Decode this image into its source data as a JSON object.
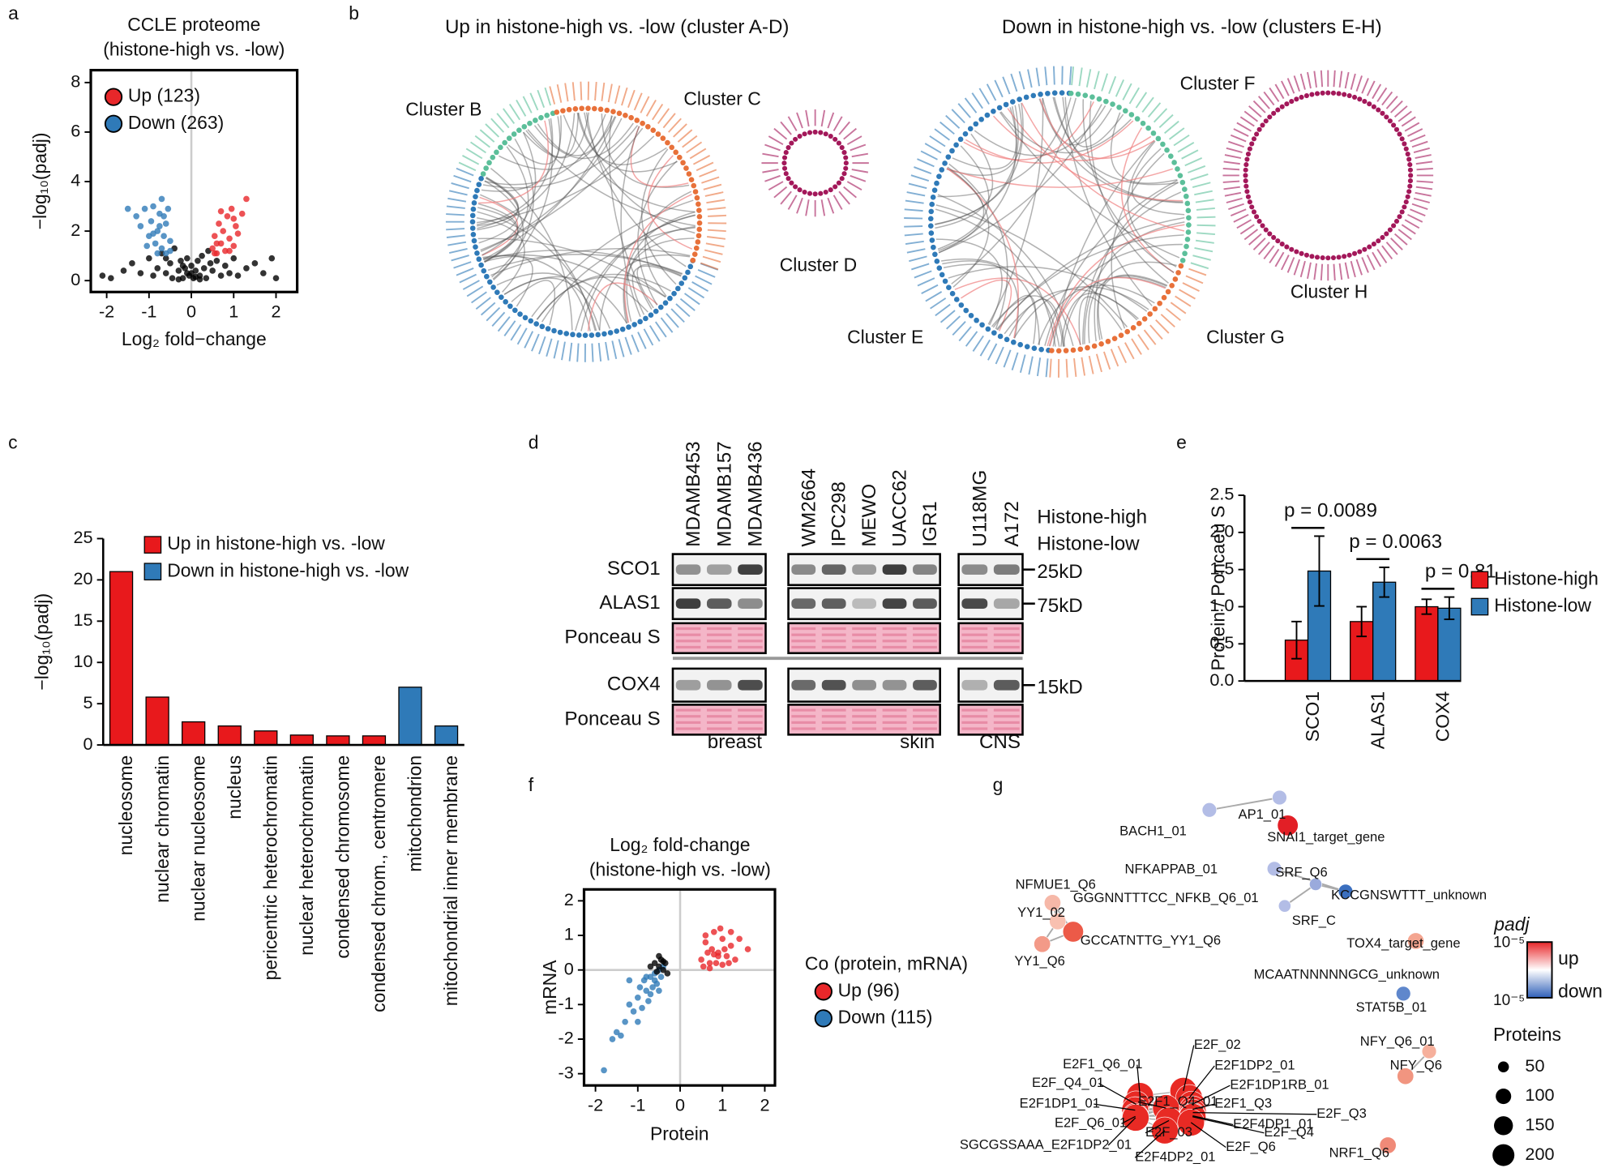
{
  "chart_data": [
    {
      "panel": "a",
      "type": "scatter",
      "title": "CCLE proteome",
      "subtitle": "(histone-high vs. -low)",
      "xlabel": "Log₂ fold−change",
      "ylabel": "−log₁₀(padj)",
      "xlim": [
        -2.375,
        2.5
      ],
      "ylim": [
        -0.46,
        8.5
      ],
      "xticks": [
        -2,
        -1,
        0,
        1,
        2
      ],
      "yticks": [
        0,
        2,
        4,
        6,
        8
      ],
      "vlines": [
        0
      ],
      "legend": "upper left",
      "series": [
        {
          "color": "#000000",
          "x": [
            -1.9,
            -1.6,
            -1.4,
            -1.2,
            -1.0,
            -0.9,
            -0.8,
            -0.7,
            -0.6,
            -0.5,
            -0.45,
            -0.4,
            -0.3,
            -0.25,
            -0.2,
            -0.15,
            -0.1,
            -0.05,
            0,
            0.05,
            0.1,
            0.15,
            0.2,
            0.25,
            0.3,
            0.35,
            0.4,
            0.5,
            0.6,
            0.7,
            0.8,
            0.9,
            1.0,
            1.1,
            1.3,
            1.5,
            1.7,
            2.0,
            -0.3,
            0.0,
            -0.6,
            0.45,
            0.2,
            -0.1,
            0.1,
            -0.2,
            1.9,
            -2.1
          ],
          "y": [
            0.1,
            0.4,
            0.7,
            0.3,
            0.9,
            0.2,
            0.5,
            1.1,
            0.3,
            0.7,
            0.1,
            1.3,
            0.4,
            0.8,
            0.1,
            0.5,
            0.9,
            0.2,
            0.6,
            0.1,
            0.4,
            0.8,
            0.2,
            1.0,
            0.5,
            0.1,
            1.2,
            0.4,
            0.8,
            0.2,
            0.6,
            0.3,
            0.9,
            0.2,
            0.5,
            0.7,
            0.3,
            0.1,
            0.05,
            0.3,
            0.9,
            0.7,
            0.05,
            0.3,
            0.15,
            0.6,
            0.9,
            0.2
          ]
        },
        {
          "name": "Up (123)",
          "color": "#e8272a",
          "x": [
            0.5,
            0.55,
            0.6,
            0.65,
            0.7,
            0.75,
            0.8,
            0.85,
            0.9,
            0.95,
            1.0,
            1.05,
            1.1,
            1.2,
            1.3,
            0.6,
            0.7,
            0.9,
            1.0,
            0.55
          ],
          "y": [
            1.3,
            1.8,
            1.1,
            2.3,
            1.5,
            2.0,
            1.2,
            2.6,
            1.7,
            2.9,
            1.4,
            2.2,
            1.9,
            2.7,
            3.3,
            1.5,
            2.8,
            1.2,
            2.5,
            1.1
          ]
        },
        {
          "name": "Down (263)",
          "color": "#2f7ab8",
          "x": [
            -1.3,
            -1.2,
            -1.1,
            -1.0,
            -0.95,
            -0.9,
            -0.85,
            -0.8,
            -0.75,
            -0.7,
            -0.7,
            -0.65,
            -0.6,
            -0.6,
            -0.55,
            -0.5,
            -0.5,
            -0.8,
            -1.05,
            -0.9,
            -1.5,
            -0.75,
            -0.65
          ],
          "y": [
            2.6,
            2.2,
            2.9,
            1.8,
            2.4,
            3.0,
            1.5,
            2.0,
            2.7,
            1.3,
            3.3,
            1.8,
            2.3,
            1.1,
            2.9,
            1.6,
            1.2,
            1.1,
            1.4,
            1.9,
            2.9,
            2.2,
            2.6
          ]
        }
      ]
    },
    {
      "panel": "b",
      "type": "chord",
      "diagrams": [
        {
          "title": "Up in histone-high vs. -low (cluster A-D)",
          "other_color": "#2f7ab8",
          "clusters": [
            {
              "label": "Cluster B",
              "color": "#5cbf9a"
            },
            {
              "label": "Cluster C",
              "color": "#e8713a"
            },
            {
              "label": "Cluster D",
              "color": "#a3185a"
            }
          ]
        },
        {
          "title": "Down in histone-high vs. -low (clusters E-H)",
          "clusters": [
            {
              "label": "Cluster E",
              "color": "#2f7ab8"
            },
            {
              "label": "Cluster F",
              "color": "#5cbf9a"
            },
            {
              "label": "Cluster G",
              "color": "#e8713a"
            },
            {
              "label": "Cluster H",
              "color": "#a3185a"
            }
          ]
        }
      ]
    },
    {
      "panel": "c",
      "type": "bar",
      "ylabel": "−log₁₀(padj)",
      "categories": [
        "nucleosome",
        "nuclear chromatin",
        "nuclear nucleosome",
        "nucleus",
        "pericentric heterochromatin",
        "nuclear heterochromatin",
        "condensed chromosome",
        "condensed chrom., centromere",
        "mitochondrion",
        "mitochondrial inner membrane"
      ],
      "values": [
        21,
        5.8,
        2.8,
        2.3,
        1.7,
        1.2,
        1.1,
        1.1,
        7.0,
        2.3
      ],
      "colors": [
        "#e8191c",
        "#e8191c",
        "#e8191c",
        "#e8191c",
        "#e8191c",
        "#e8191c",
        "#e8191c",
        "#e8191c",
        "#2f7ab8",
        "#2f7ab8"
      ],
      "legend": [
        {
          "name": "Up in histone-high vs. -low",
          "color": "#e8191c"
        },
        {
          "name": "Down in histone-high vs. -low",
          "color": "#2f7ab8"
        }
      ],
      "ylim": [
        0,
        25
      ],
      "yticks": [
        0,
        5,
        10,
        15,
        20,
        25
      ]
    },
    {
      "panel": "d",
      "type": "blot",
      "groups": [
        {
          "label": "breast",
          "lanes": [
            {
              "label": "MDAMB453",
              "color": "#e8272a"
            },
            {
              "label": "MDAMB157",
              "color": "#2f7ab8"
            },
            {
              "label": "MDAMB436",
              "color": "#2f7ab8"
            }
          ]
        },
        {
          "label": "skin",
          "lanes": [
            {
              "label": "WM2664",
              "color": "#e8272a"
            },
            {
              "label": "IPC298",
              "color": "#e8272a"
            },
            {
              "label": "MEWO",
              "color": "#e8272a"
            },
            {
              "label": "UACC62",
              "color": "#2f7ab8"
            },
            {
              "label": "IGR1",
              "color": "#2f7ab8"
            }
          ]
        },
        {
          "label": "CNS",
          "lanes": [
            {
              "label": "U118MG",
              "color": "#e8272a"
            },
            {
              "label": "A172",
              "color": "#2f7ab8"
            }
          ]
        }
      ],
      "rows": [
        {
          "label": "SCO1",
          "marker": "25kD"
        },
        {
          "label": "ALAS1",
          "marker": "75kD"
        },
        {
          "label": "Ponceau S"
        },
        {
          "label": "COX4",
          "marker": "15kD"
        },
        {
          "label": "Ponceau S"
        }
      ],
      "legend": [
        {
          "name": "Histone-high",
          "color": "#e8272a"
        },
        {
          "name": "Histone-low",
          "color": "#2f7ab8"
        }
      ]
    },
    {
      "panel": "e",
      "type": "bar",
      "ylabel": "Protein / Poncaeu S",
      "categories": [
        "SCO1",
        "ALAS1",
        "COX4"
      ],
      "series": [
        {
          "name": "Histone-high",
          "color": "#e8191c",
          "values": [
            0.55,
            0.8,
            1.0
          ],
          "errors": [
            0.25,
            0.2,
            0.1
          ]
        },
        {
          "name": "Histone-low",
          "color": "#2f7ab8",
          "values": [
            1.48,
            1.33,
            0.98
          ],
          "errors": [
            0.47,
            0.2,
            0.15
          ]
        }
      ],
      "annotations": [
        "p = 0.0089",
        "p = 0.0063",
        "p = 0.81"
      ],
      "ylim": [
        0,
        2.5
      ],
      "yticks": [
        {
          "value": 0,
          "label": "0.0"
        },
        0.5,
        {
          "value": 1,
          "label": "1.0"
        },
        1.5,
        {
          "value": 2,
          "label": "2.0"
        },
        2.5
      ]
    },
    {
      "panel": "f",
      "type": "scatter",
      "title": "Log₂ fold-change",
      "subtitle": "(histone-high vs. -low)",
      "xlabel": "Protein",
      "ylabel": "mRNA",
      "legend_title": "Co (protein, mRNA)",
      "legend": "right",
      "xlim": [
        -2.27,
        2.24
      ],
      "ylim": [
        -3.34,
        2.33
      ],
      "xticks": [
        -2,
        -1,
        0,
        1,
        2
      ],
      "yticks": [
        -3,
        -2,
        -1,
        0,
        1,
        2
      ],
      "vlines": [
        0
      ],
      "hlines": [
        0
      ],
      "series": [
        {
          "name": "Up (96)",
          "color": "#e8272a",
          "x": [
            0.5,
            0.6,
            0.7,
            0.8,
            0.9,
            1.0,
            1.1,
            1.2,
            1.3,
            0.55,
            0.65,
            0.75,
            0.85,
            0.95,
            1.05,
            1.15,
            1.4,
            1.6,
            0.7,
            0.9,
            1.0,
            0.6,
            0.8,
            1.2
          ],
          "y": [
            0.3,
            0.8,
            0.2,
            1.1,
            0.5,
            0.9,
            0.4,
            0.7,
            0.3,
            0.1,
            0.5,
            0.6,
            0.2,
            1.2,
            0.6,
            0.2,
            0.9,
            0.6,
            0.05,
            0.4,
            0.15,
            1.0,
            0.45,
            1.1
          ]
        },
        {
          "name": "Down (115)",
          "color": "#2f7ab8",
          "x": [
            -1.8,
            -1.5,
            -1.4,
            -1.3,
            -1.2,
            -1.1,
            -1.0,
            -0.95,
            -0.9,
            -0.85,
            -0.8,
            -0.75,
            -0.7,
            -0.65,
            -0.6,
            -0.55,
            -0.5,
            -0.45,
            -0.4,
            -1.6,
            -1.2,
            -1.0,
            -0.8,
            -0.7,
            -0.6,
            -0.5
          ],
          "y": [
            -2.9,
            -1.8,
            -1.9,
            -1.5,
            -1.0,
            -1.2,
            -0.8,
            -0.5,
            -1.1,
            -0.3,
            -0.6,
            -0.9,
            -0.2,
            -0.5,
            -0.1,
            -0.4,
            0.0,
            -0.2,
            0.1,
            -2.0,
            -0.3,
            -1.5,
            -0.2,
            -0.7,
            -0.3,
            -0.6
          ]
        },
        {
          "color": "#000000",
          "x": [
            -0.6,
            -0.5,
            -0.45,
            -0.4,
            -0.35,
            -0.3,
            -0.5,
            -0.4,
            -0.7,
            -0.55
          ],
          "y": [
            0.2,
            0.1,
            0.3,
            0.0,
            0.2,
            -0.1,
            0.4,
            0.25,
            0.1,
            -0.05
          ]
        }
      ]
    },
    {
      "panel": "g",
      "type": "network",
      "nodes": [
        {
          "label": "AP1_01",
          "color": "#b3bde6"
        },
        {
          "label": "BACH1_01",
          "color": "#b3bde6"
        },
        {
          "label": "SNAI1_target_gene",
          "color": "#e21f26"
        },
        {
          "label": "NFKAPPAB_01",
          "color": "#b3bde6"
        },
        {
          "label": "GGGNNTTTCC_NFKB_Q6_01",
          "color": "#3b6fbf"
        },
        {
          "label": "SRF_Q6",
          "color": "#9aaadc"
        },
        {
          "label": "KCCGNSWTTT_unknown",
          "color": "#c4cbe8"
        },
        {
          "label": "SRF_C",
          "color": "#b3bde6"
        },
        {
          "label": "NFMUE1_Q6",
          "color": "#f6b8a8"
        },
        {
          "label": "YY1_02",
          "color": "#f8c0b0"
        },
        {
          "label": "GCCATNTTG_YY1_Q6",
          "color": "#ec5a48"
        },
        {
          "label": "YY1_Q6",
          "color": "#f39a88"
        },
        {
          "label": "TOX4_target_gene",
          "color": "#f4a590"
        },
        {
          "label": "MCAATNNNNNGCG_unknown",
          "color": "#f7d0c4"
        },
        {
          "label": "STAT5B_01",
          "color": "#5f87cc"
        },
        {
          "label": "NFY_Q6_01",
          "color": "#f6b09c"
        },
        {
          "label": "NFY_Q6",
          "color": "#f19580"
        },
        {
          "label": "NRF1_Q6",
          "color": "#f08a78"
        },
        {
          "label": "E2F_02",
          "color": "#e82a24"
        },
        {
          "label": "E2F1_Q6_01",
          "color": "#e82a24"
        },
        {
          "label": "E2F1DP2_01",
          "color": "#e82a24"
        },
        {
          "label": "E2F_Q4_01",
          "color": "#e82a24"
        },
        {
          "label": "E2F1DP1RB_01",
          "color": "#e82a24"
        },
        {
          "label": "E2F1DP1_01",
          "color": "#e82a24"
        },
        {
          "label": "E2F1_Q3",
          "color": "#e82a24"
        },
        {
          "label": "E2F1_Q4_01",
          "color": "#e82a24"
        },
        {
          "label": "E2F_Q3",
          "color": "#e82a24"
        },
        {
          "label": "E2F_Q6_01",
          "color": "#e82a24"
        },
        {
          "label": "E2F4DP1_01",
          "color": "#e82a24"
        },
        {
          "label": "E2F_Q4",
          "color": "#e82a24"
        },
        {
          "label": "E2F_03",
          "color": "#e82a24"
        },
        {
          "label": "SGCGSSAAA_E2F1DP2_01",
          "color": "#e82a24"
        },
        {
          "label": "E2F_Q6",
          "color": "#e82a24"
        },
        {
          "label": "E2F4DP2_01",
          "color": "#e82a24"
        }
      ],
      "legend": {
        "title": "padj",
        "high": "up",
        "low": "down",
        "high_tick": "10⁻⁵",
        "low_tick": "10⁻⁵",
        "high_color": "#e8272a",
        "low_color": "#2f5fb8",
        "size_title": "Proteins",
        "sizes": [
          50,
          100,
          150,
          200
        ]
      }
    }
  ]
}
